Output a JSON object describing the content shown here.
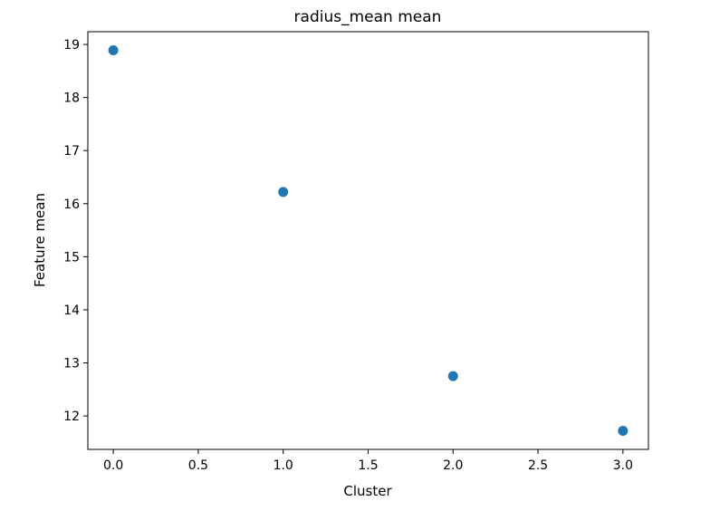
{
  "chart_data": {
    "type": "scatter",
    "title": "radius_mean mean",
    "xlabel": "Cluster",
    "ylabel": "Feature mean",
    "x": [
      0.0,
      1.0,
      2.0,
      3.0
    ],
    "y": [
      18.89,
      16.22,
      12.75,
      11.72
    ],
    "xlim": [
      -0.15,
      3.15
    ],
    "ylim": [
      11.37,
      19.24
    ],
    "xticks": [
      0.0,
      0.5,
      1.0,
      1.5,
      2.0,
      2.5,
      3.0
    ],
    "xtick_labels": [
      "0.0",
      "0.5",
      "1.0",
      "1.5",
      "2.0",
      "2.5",
      "3.0"
    ],
    "yticks": [
      12,
      13,
      14,
      15,
      16,
      17,
      18,
      19
    ],
    "ytick_labels": [
      "12",
      "13",
      "14",
      "15",
      "16",
      "17",
      "18",
      "19"
    ],
    "grid": false,
    "marker_color": "#1f77b4"
  }
}
